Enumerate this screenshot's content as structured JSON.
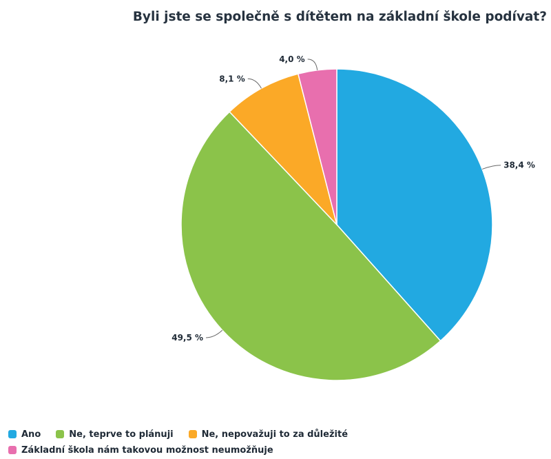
{
  "chart_data": {
    "type": "pie",
    "title": "Byli jste se společně s dítětem na základní škole podívat?",
    "slices": [
      {
        "label": "Ano",
        "value": 38.4,
        "value_label": "38,4 %",
        "color": "#22a9e1"
      },
      {
        "label": "Ne, teprve to plánuji",
        "value": 49.5,
        "value_label": "49,5 %",
        "color": "#8bc34a"
      },
      {
        "label": "Ne, nepovažuji to za důležité",
        "value": 8.1,
        "value_label": "8,1 %",
        "color": "#fba927"
      },
      {
        "label": "Základní škola nám takovou možnost neumožňuje",
        "value": 4.0,
        "value_label": "4,0 %",
        "color": "#e86fae"
      }
    ],
    "legend_position": "bottom-left"
  }
}
